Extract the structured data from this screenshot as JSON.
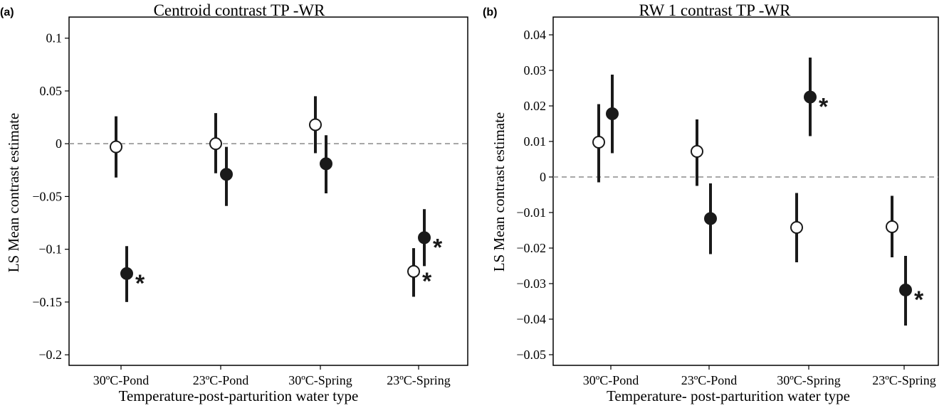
{
  "chart_data": [
    {
      "type": "scatter",
      "panel_label": "(a)",
      "title": "Centroid contrast TP -WR",
      "xlabel": "Temperature-post-parturition water type",
      "ylabel": "LS Mean contrast estimate",
      "categories": [
        "30ºC-Pond",
        "23ºC-Pond",
        "30ºC-Spring",
        "23ºC-Spring"
      ],
      "ylim": [
        -0.21,
        0.12
      ],
      "yticks": [
        0.1,
        0.05,
        0,
        -0.05,
        -0.1,
        -0.15,
        -0.2
      ],
      "ytick_labels": [
        "0.1",
        "0.05",
        "0",
        "−0.05",
        "−0.1",
        "−0.15",
        "−0.2"
      ],
      "reference_line": 0,
      "grid": false,
      "points": [
        {
          "category": "30ºC-Pond",
          "fill": "open",
          "y": -0.003,
          "low": -0.032,
          "high": 0.026,
          "sig": ""
        },
        {
          "category": "30ºC-Pond",
          "fill": "filled",
          "y": -0.123,
          "low": -0.15,
          "high": -0.097,
          "sig": "*"
        },
        {
          "category": "23ºC-Pond",
          "fill": "open",
          "y": 0.0,
          "low": -0.028,
          "high": 0.029,
          "sig": ""
        },
        {
          "category": "23ºC-Pond",
          "fill": "filled",
          "y": -0.029,
          "low": -0.059,
          "high": -0.003,
          "sig": ""
        },
        {
          "category": "30ºC-Spring",
          "fill": "open",
          "y": 0.018,
          "low": -0.009,
          "high": 0.045,
          "sig": ""
        },
        {
          "category": "30ºC-Spring",
          "fill": "filled",
          "y": -0.019,
          "low": -0.047,
          "high": 0.008,
          "sig": ""
        },
        {
          "category": "23ºC-Spring",
          "fill": "open",
          "y": -0.121,
          "low": -0.145,
          "high": -0.099,
          "sig": "*"
        },
        {
          "category": "23ºC-Spring",
          "fill": "filled",
          "y": -0.089,
          "low": -0.116,
          "high": -0.062,
          "sig": "*"
        }
      ]
    },
    {
      "type": "scatter",
      "panel_label": "(b)",
      "title": "RW 1 contrast TP -WR",
      "xlabel": "Temperature- post-parturition water type",
      "ylabel": "LS Mean contrast estimate",
      "categories": [
        "30ºC-Pond",
        "23ºC-Pond",
        "30ºC-Spring",
        "23ºC-Spring"
      ],
      "ylim": [
        -0.053,
        0.045
      ],
      "yticks": [
        0.04,
        0.03,
        0.02,
        0.01,
        0,
        -0.01,
        -0.02,
        -0.03,
        -0.04,
        -0.05
      ],
      "ytick_labels": [
        "0.04",
        "0.03",
        "0.02",
        "0.01",
        "0",
        "−0.01",
        "−0.02",
        "−0.03",
        "−0.04",
        "−0.05"
      ],
      "reference_line": 0,
      "grid": false,
      "points": [
        {
          "category": "30ºC-Pond",
          "fill": "open",
          "y": 0.0098,
          "low": -0.0015,
          "high": 0.0205,
          "sig": ""
        },
        {
          "category": "30ºC-Pond",
          "fill": "filled",
          "y": 0.0178,
          "low": 0.0067,
          "high": 0.0288,
          "sig": ""
        },
        {
          "category": "23ºC-Pond",
          "fill": "open",
          "y": 0.0072,
          "low": -0.0025,
          "high": 0.0162,
          "sig": ""
        },
        {
          "category": "23ºC-Pond",
          "fill": "filled",
          "y": -0.0117,
          "low": -0.0217,
          "high": -0.0018,
          "sig": ""
        },
        {
          "category": "30ºC-Spring",
          "fill": "open",
          "y": -0.0142,
          "low": -0.024,
          "high": -0.0045,
          "sig": ""
        },
        {
          "category": "30ºC-Spring",
          "fill": "filled",
          "y": 0.0225,
          "low": 0.0115,
          "high": 0.0336,
          "sig": "*"
        },
        {
          "category": "23ºC-Spring",
          "fill": "open",
          "y": -0.014,
          "low": -0.0226,
          "high": -0.0053,
          "sig": ""
        },
        {
          "category": "23ºC-Spring",
          "fill": "filled",
          "y": -0.0318,
          "low": -0.0418,
          "high": -0.0222,
          "sig": "*"
        }
      ]
    }
  ]
}
